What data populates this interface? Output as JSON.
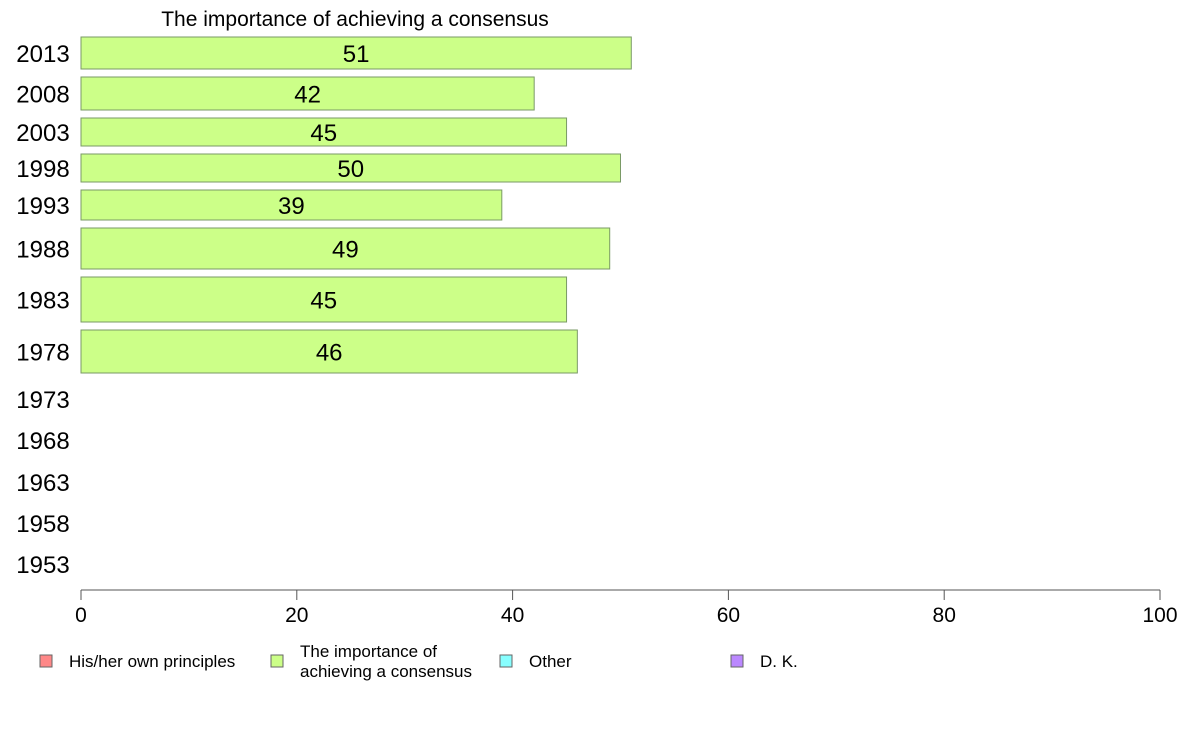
{
  "chart_data": {
    "type": "bar",
    "orientation": "horizontal",
    "title": "The importance of achieving a consensus",
    "xlabel": "",
    "ylabel": "",
    "xlim": [
      0,
      100
    ],
    "x_ticks": [
      "0",
      "20",
      "40",
      "60",
      "80",
      "100"
    ],
    "categories": [
      "2013",
      "2008",
      "2003",
      "1998",
      "1993",
      "1988",
      "1983",
      "1978",
      "1973",
      "1968",
      "1963",
      "1958",
      "1953"
    ],
    "series": [
      {
        "name": "The importance of achieving a consensus",
        "color": "#ccff88",
        "values": [
          51,
          42,
          45,
          50,
          39,
          49,
          45,
          46,
          null,
          null,
          null,
          null,
          null
        ]
      }
    ],
    "legend": {
      "placement": "bottom",
      "items": [
        {
          "label": "His/her own principles",
          "color": "#ff8888"
        },
        {
          "label": "The importance of achieving a consensus",
          "lines": [
            "The importance of",
            "achieving a consensus"
          ],
          "color": "#ccff88"
        },
        {
          "label": "Other",
          "color": "#88ffff"
        },
        {
          "label": "D. K.",
          "color": "#bb88ff"
        }
      ]
    },
    "grid": false
  }
}
